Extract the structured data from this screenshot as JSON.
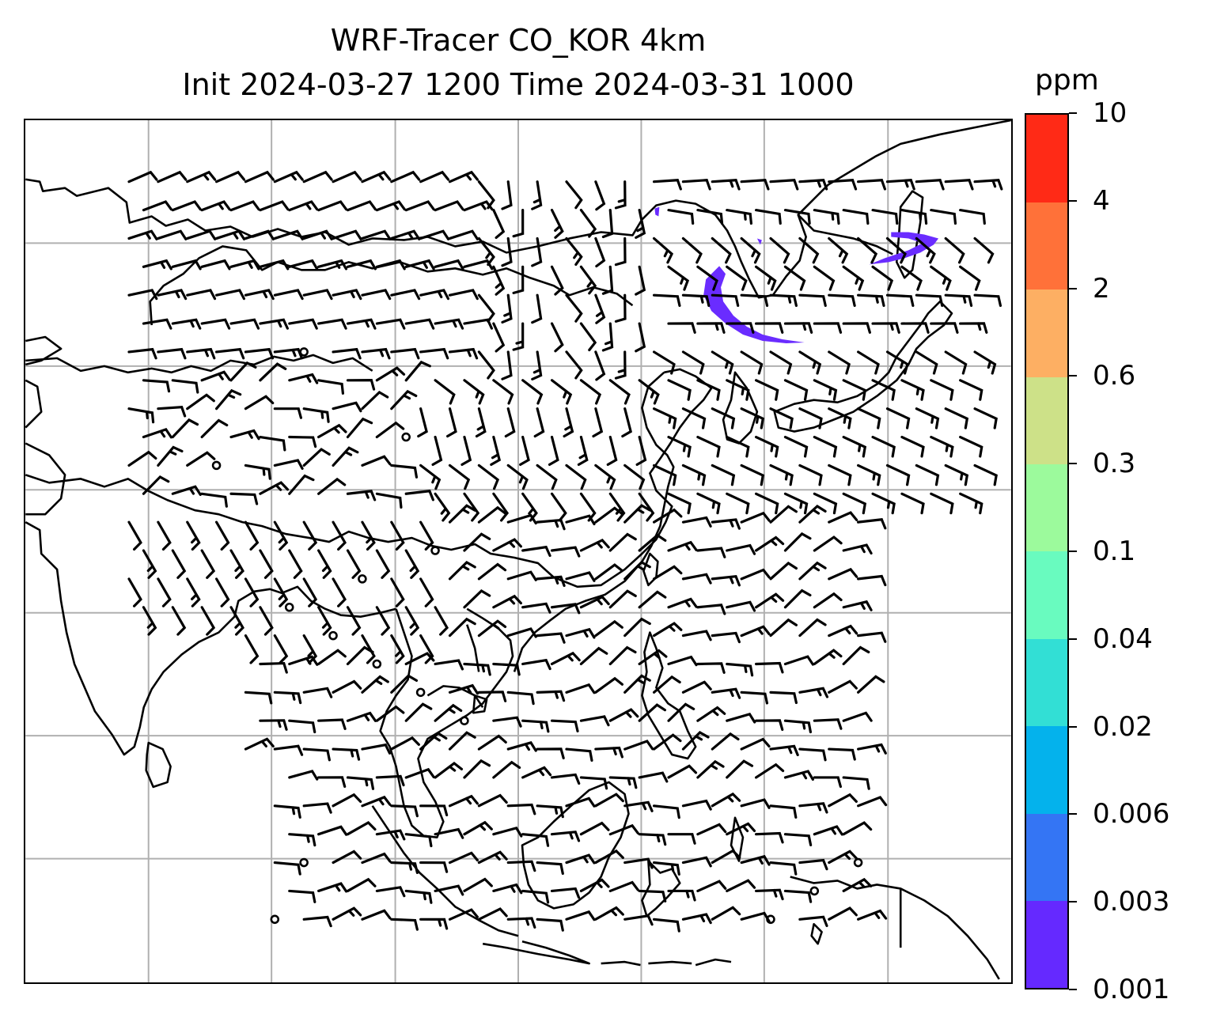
{
  "title": {
    "line1": "WRF-Tracer CO_KOR 4km",
    "line2": "Init 2024-03-27 1200 Time 2024-03-31 1000"
  },
  "map": {
    "variable": "CO_KOR tracer concentration",
    "overlays": [
      "coastlines",
      "country borders",
      "lat/lon gridlines",
      "wind barbs"
    ],
    "gridlines": true,
    "gridline_color": "#b0b0b0",
    "coastline_color": "#000000",
    "barb_color": "#000000",
    "plume_color": "#6a2cff"
  },
  "colorbar": {
    "unit": "ppm",
    "ticks": [
      "0.001",
      "0.003",
      "0.006",
      "0.02",
      "0.04",
      "0.1",
      "0.3",
      "0.6",
      "2",
      "4",
      "10"
    ],
    "colors": [
      "#6529ff",
      "#3475f4",
      "#04b2ec",
      "#32dfd5",
      "#69fbbf",
      "#9cfa9c",
      "#cde188",
      "#fdaf63",
      "#ff7139",
      "#ff2a16"
    ]
  }
}
